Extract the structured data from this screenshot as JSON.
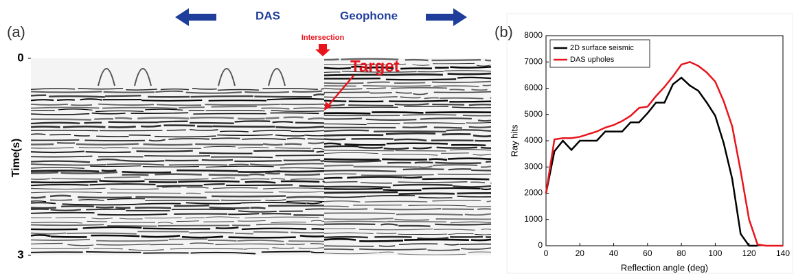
{
  "panel_a": {
    "label": "(a)",
    "left_label": "DAS",
    "right_label": "Geophone",
    "intersection": "Intersection",
    "target": "Target",
    "y_label": "Time(s)",
    "ylim": [
      0,
      3
    ],
    "yticks": [
      0,
      3
    ]
  },
  "chart_data": {
    "type": "line",
    "label": "(b)",
    "xlabel": "Reflection angle (deg)",
    "ylabel": "Ray hits",
    "x": [
      0,
      5,
      10,
      15,
      20,
      25,
      30,
      35,
      40,
      45,
      50,
      55,
      60,
      65,
      70,
      75,
      80,
      85,
      90,
      95,
      100,
      105,
      110,
      115,
      120,
      125,
      130,
      135,
      140
    ],
    "series": [
      {
        "name": "2D surface seismic",
        "color": "#000000",
        "values": [
          2000,
          3600,
          4000,
          3650,
          4000,
          4000,
          4000,
          4350,
          4350,
          4350,
          4700,
          4700,
          5050,
          5450,
          5450,
          6150,
          6400,
          6100,
          5900,
          5450,
          4950,
          3900,
          2550,
          450,
          0,
          0,
          null,
          null,
          null
        ]
      },
      {
        "name": "DAS upholes",
        "color": "#e8141c",
        "values": [
          2000,
          4050,
          4100,
          4100,
          4150,
          4250,
          4350,
          4500,
          4600,
          4750,
          4950,
          5250,
          5300,
          5700,
          6050,
          6450,
          6900,
          7000,
          6850,
          6600,
          6250,
          5500,
          4550,
          2850,
          1000,
          50,
          0,
          0,
          0
        ]
      }
    ],
    "xlim": [
      0,
      140
    ],
    "xticks": [
      0,
      20,
      40,
      60,
      80,
      100,
      120,
      140
    ],
    "ylim": [
      0,
      8000
    ],
    "yticks": [
      0,
      1000,
      2000,
      3000,
      4000,
      5000,
      6000,
      7000,
      8000
    ],
    "legend": "upper left",
    "grid": false
  }
}
